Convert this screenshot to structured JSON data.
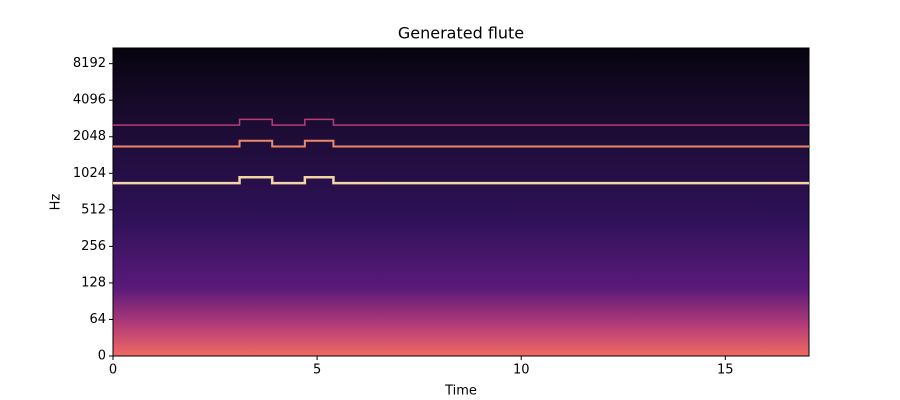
{
  "chart_data": {
    "type": "spectrogram",
    "title": "Generated flute",
    "xlabel": "Time",
    "ylabel": "Hz",
    "xlim": [
      0,
      17.05
    ],
    "xticks": [
      0,
      5,
      10,
      15
    ],
    "ylim": [
      0,
      11025
    ],
    "yscale": "symlog",
    "linthresh": 64,
    "yticks": [
      0,
      64,
      128,
      256,
      512,
      1024,
      2048,
      4096,
      8192
    ],
    "x": [
      0,
      3.1,
      3.1,
      3.9,
      3.9,
      4.7,
      4.7,
      5.4,
      5.4,
      17.05
    ],
    "series": [
      {
        "color": "#fde0a8",
        "values": [
          850,
          850,
          950,
          950,
          850,
          850,
          950,
          950,
          850,
          850
        ]
      },
      {
        "color": "#f7906c",
        "values": [
          1700,
          1700,
          1900,
          1900,
          1700,
          1700,
          1900,
          1900,
          1700,
          1700
        ]
      },
      {
        "color": "#c0407a",
        "values": [
          2550,
          2550,
          2850,
          2850,
          2550,
          2550,
          2850,
          2850,
          2550,
          2550
        ]
      }
    ]
  }
}
